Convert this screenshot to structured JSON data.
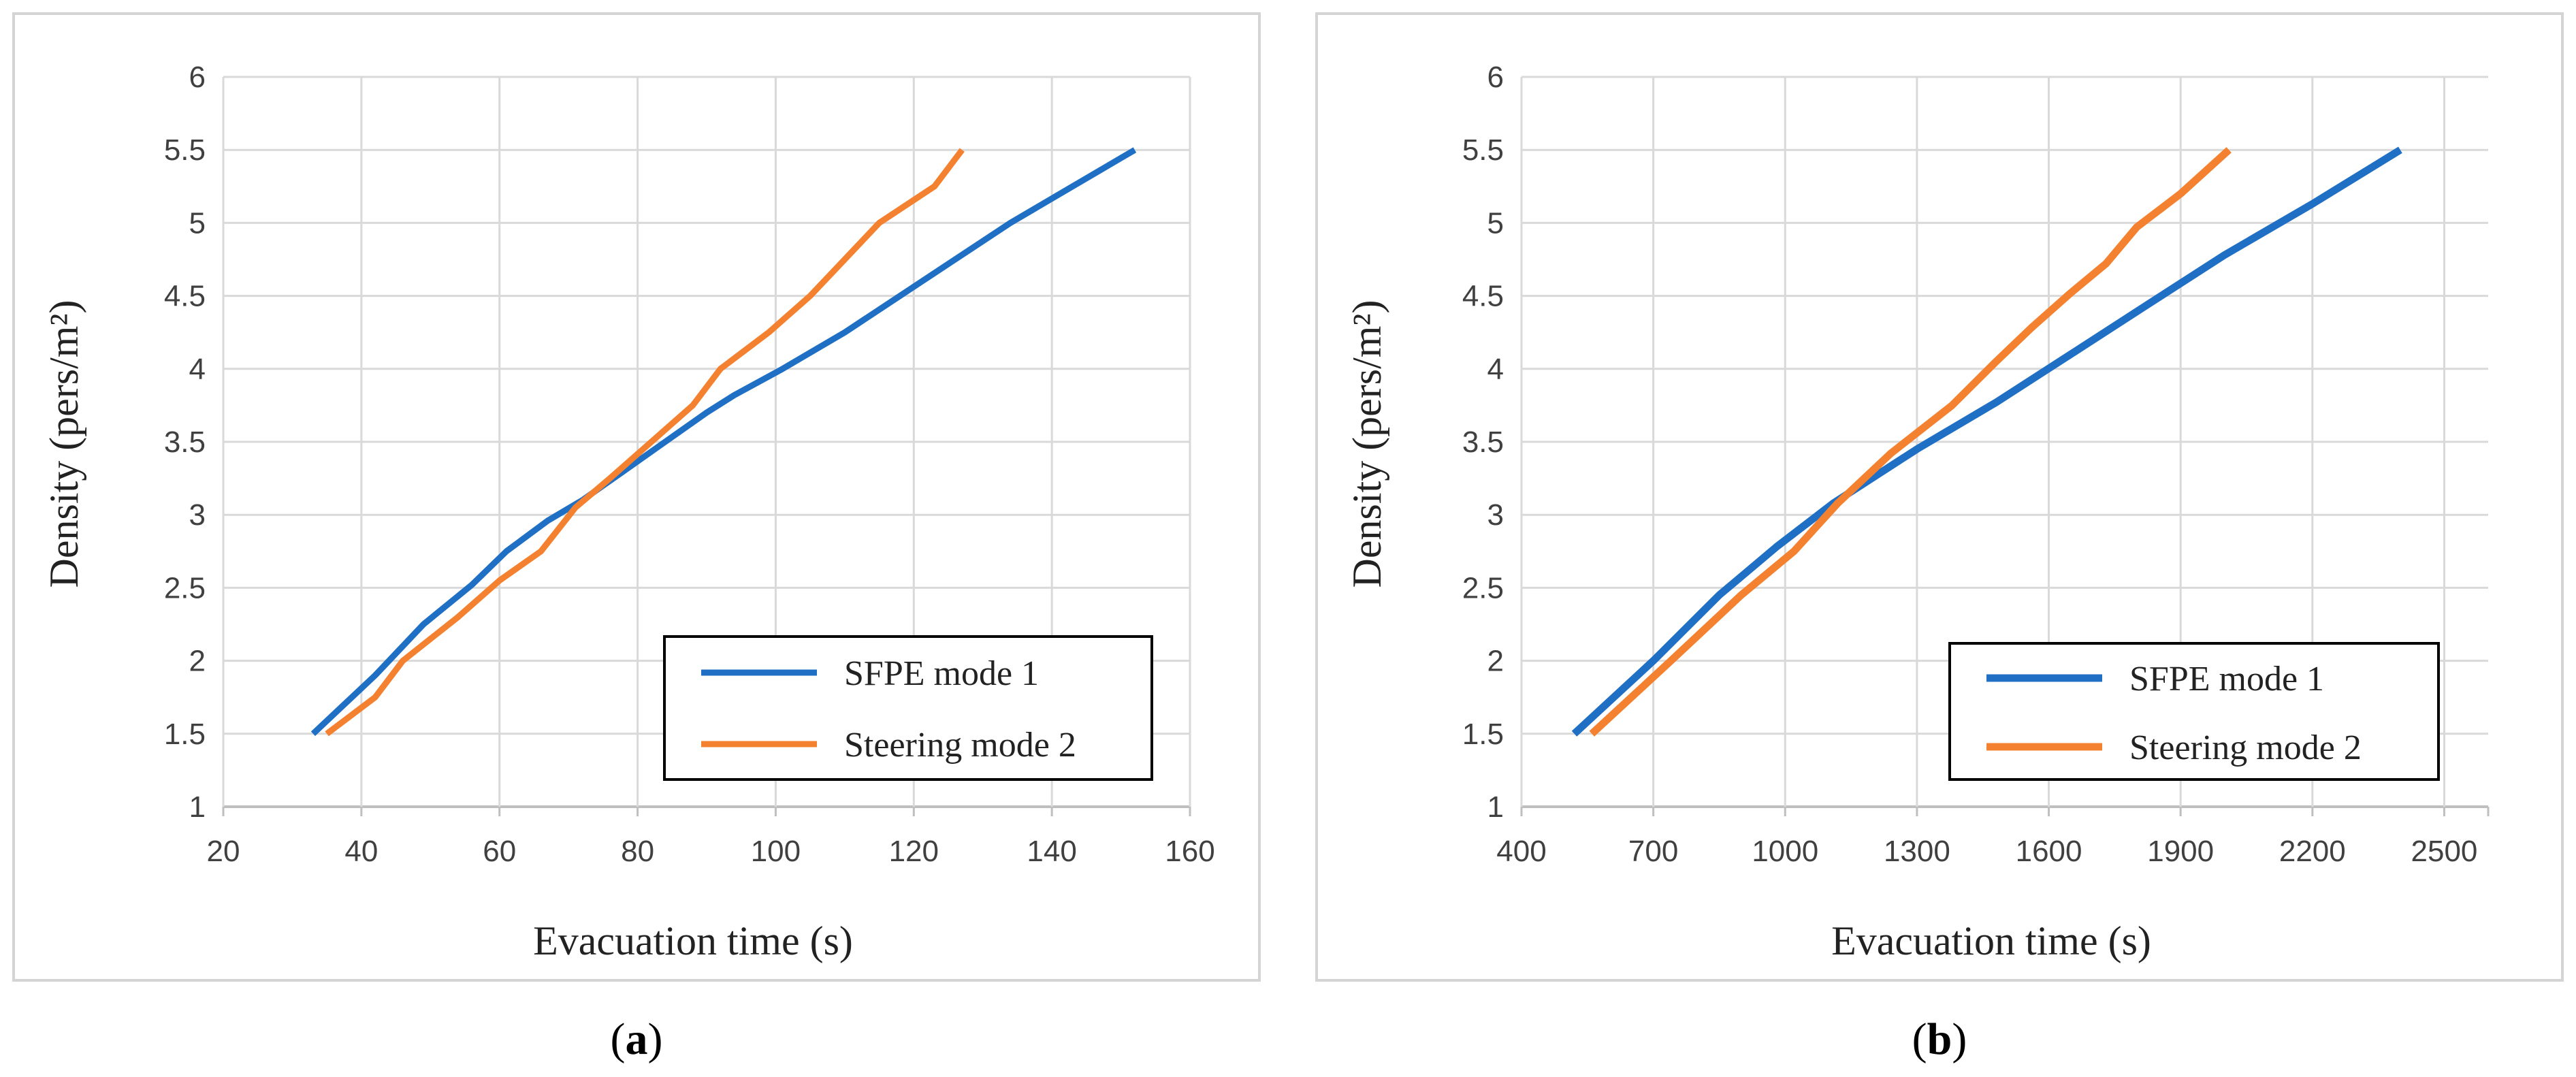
{
  "chart_data": [
    {
      "type": "line",
      "panel_label": "(a)",
      "panel_letter": "a",
      "xlabel": "Evacuation time (s)",
      "ylabel": "Density (pers/m²)",
      "xlim": [
        20,
        160
      ],
      "ylim": [
        1,
        6
      ],
      "xticks": [
        20,
        40,
        60,
        80,
        100,
        120,
        140,
        160
      ],
      "yticks": [
        1,
        1.5,
        2,
        2.5,
        3,
        3.5,
        4,
        4.5,
        5,
        5.5,
        6
      ],
      "grid": true,
      "legend_position": "bottom-right",
      "series": [
        {
          "name": "SFPE mode 1",
          "color": "#1f6fc5",
          "points": [
            [
              33,
              1.5
            ],
            [
              42,
              1.9
            ],
            [
              49,
              2.25
            ],
            [
              56,
              2.52
            ],
            [
              61,
              2.75
            ],
            [
              67,
              2.96
            ],
            [
              72,
              3.1
            ],
            [
              78,
              3.3
            ],
            [
              84,
              3.5
            ],
            [
              90,
              3.7
            ],
            [
              94,
              3.82
            ],
            [
              101,
              4.0
            ],
            [
              110,
              4.25
            ],
            [
              118,
              4.5
            ],
            [
              126,
              4.75
            ],
            [
              134,
              5.0
            ],
            [
              143,
              5.25
            ],
            [
              152,
              5.5
            ]
          ]
        },
        {
          "name": "Steering mode 2",
          "color": "#f4812f",
          "points": [
            [
              35,
              1.5
            ],
            [
              42,
              1.75
            ],
            [
              46,
              2.0
            ],
            [
              54,
              2.3
            ],
            [
              60,
              2.55
            ],
            [
              66,
              2.75
            ],
            [
              71,
              3.05
            ],
            [
              76,
              3.25
            ],
            [
              82,
              3.5
            ],
            [
              88,
              3.75
            ],
            [
              92,
              4.0
            ],
            [
              99,
              4.25
            ],
            [
              105,
              4.5
            ],
            [
              110,
              4.75
            ],
            [
              115,
              5.0
            ],
            [
              123,
              5.25
            ],
            [
              127,
              5.5
            ]
          ]
        }
      ]
    },
    {
      "type": "line",
      "panel_label": "(b)",
      "panel_letter": "b",
      "xlabel": "Evacuation time (s)",
      "ylabel": "Density (pers/m²)",
      "xlim": [
        400,
        2600
      ],
      "ylim": [
        1,
        6
      ],
      "xticks": [
        400,
        700,
        1000,
        1300,
        1600,
        1900,
        2200,
        2500
      ],
      "yticks": [
        1,
        1.5,
        2,
        2.5,
        3,
        3.5,
        4,
        4.5,
        5,
        5.5,
        6
      ],
      "grid": true,
      "legend_position": "bottom-right",
      "series": [
        {
          "name": "SFPE mode 1",
          "color": "#1f6fc5",
          "points": [
            [
              520,
              1.5
            ],
            [
              700,
              2.0
            ],
            [
              850,
              2.45
            ],
            [
              980,
              2.78
            ],
            [
              1110,
              3.08
            ],
            [
              1300,
              3.45
            ],
            [
              1480,
              3.77
            ],
            [
              1650,
              4.1
            ],
            [
              1830,
              4.45
            ],
            [
              2000,
              4.78
            ],
            [
              2200,
              5.13
            ],
            [
              2400,
              5.5
            ]
          ]
        },
        {
          "name": "Steering mode 2",
          "color": "#f4812f",
          "points": [
            [
              560,
              1.5
            ],
            [
              740,
              2.0
            ],
            [
              900,
              2.45
            ],
            [
              1020,
              2.75
            ],
            [
              1120,
              3.08
            ],
            [
              1240,
              3.42
            ],
            [
              1380,
              3.75
            ],
            [
              1480,
              4.05
            ],
            [
              1560,
              4.28
            ],
            [
              1650,
              4.52
            ],
            [
              1730,
              4.72
            ],
            [
              1800,
              4.97
            ],
            [
              1900,
              5.2
            ],
            [
              2010,
              5.5
            ]
          ]
        }
      ]
    }
  ]
}
